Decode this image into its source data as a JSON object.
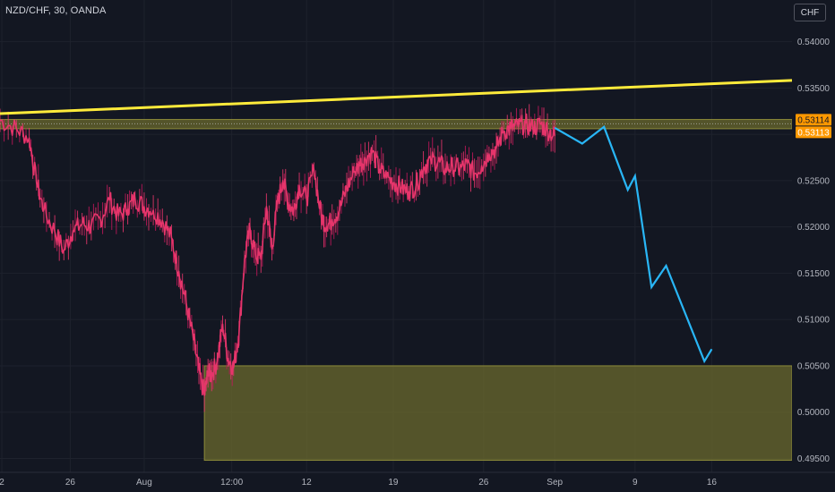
{
  "header": {
    "symbol": "NZD/CHF, 30, OANDA",
    "currency": "CHF"
  },
  "colors": {
    "background": "#131722",
    "candle_up": "#e6356b",
    "candle_down": "#c2185b",
    "trendline": "#ffeb3b",
    "projection": "#29b6f6",
    "zone_fill": "#6b6a2e",
    "zone_border": "#8c8a3a",
    "price_label": "#ff9800"
  },
  "chart_data": {
    "type": "line",
    "title": "NZD/CHF, 30, OANDA",
    "xlabel": "",
    "ylabel": "",
    "y_ticks": [
      "0.54000",
      "0.53500",
      "0.53000",
      "0.52500",
      "0.52000",
      "0.51500",
      "0.51000",
      "0.50500",
      "0.50000",
      "0.49500"
    ],
    "y_tick_values": [
      0.54,
      0.535,
      0.53,
      0.525,
      0.52,
      0.515,
      0.51,
      0.505,
      0.5,
      0.495
    ],
    "ylim": [
      0.4935,
      0.5445
    ],
    "x_ticks": [
      "2",
      "26",
      "Aug",
      "12:00",
      "12",
      "19",
      "26",
      "Sep",
      "9",
      "16"
    ],
    "x_tick_days": [
      -0.3,
      3.45,
      7.5,
      12.3,
      16.4,
      21.15,
      26.1,
      30.0,
      34.4,
      38.6
    ],
    "xlim": [
      -0.4,
      43.0
    ],
    "grid": true,
    "series": [
      {
        "x": [
          -0.4,
          0.5,
          1.2,
          1.6,
          2.0,
          2.6,
          3.1,
          3.6,
          4.1,
          4.6,
          5.1,
          5.6,
          6.1,
          6.6,
          7.0,
          7.5,
          8.0,
          8.5,
          9.0,
          9.4,
          9.8,
          10.2,
          10.5,
          10.8,
          11.0,
          11.2,
          11.5,
          11.8,
          12.1,
          12.4,
          12.7,
          13.0,
          13.3,
          13.6,
          13.9,
          14.2,
          14.5,
          14.8,
          15.1,
          15.4,
          15.7,
          16.0,
          16.4,
          16.8,
          17.2,
          17.5,
          17.8,
          18.2,
          18.6,
          19.0,
          19.3,
          19.6,
          20.0,
          20.4,
          20.8,
          21.2,
          21.6,
          22.0,
          22.4,
          22.8,
          23.2,
          23.6,
          24.0,
          24.4,
          24.8,
          25.2,
          25.6,
          26.0,
          26.4,
          26.8,
          27.2,
          27.6,
          28.0,
          28.4,
          28.8,
          29.2,
          29.6,
          30.0
        ],
        "values": [
          0.5315,
          0.5306,
          0.5296,
          0.5248,
          0.5218,
          0.5195,
          0.5175,
          0.5196,
          0.5203,
          0.5201,
          0.5208,
          0.5229,
          0.5212,
          0.5219,
          0.5231,
          0.5222,
          0.5218,
          0.5207,
          0.5188,
          0.5152,
          0.5118,
          0.5078,
          0.5045,
          0.5018,
          0.5042,
          0.504,
          0.5055,
          0.5095,
          0.5058,
          0.5048,
          0.5085,
          0.5165,
          0.5198,
          0.517,
          0.5165,
          0.5222,
          0.5176,
          0.5225,
          0.525,
          0.5226,
          0.5218,
          0.5245,
          0.523,
          0.5262,
          0.5212,
          0.52,
          0.5208,
          0.5218,
          0.5242,
          0.5259,
          0.5266,
          0.5275,
          0.528,
          0.5262,
          0.5253,
          0.5248,
          0.5242,
          0.5238,
          0.5245,
          0.5264,
          0.5273,
          0.527,
          0.5263,
          0.5266,
          0.5262,
          0.5268,
          0.5258,
          0.5266,
          0.5279,
          0.5285,
          0.5303,
          0.5307,
          0.5308,
          0.5312,
          0.5306,
          0.5311,
          0.5305,
          0.5298
        ]
      },
      {
        "x": [
          30.0,
          31.5,
          32.7,
          34.0,
          34.4,
          35.3,
          36.1,
          38.2,
          38.6
        ],
        "values": [
          0.5307,
          0.529,
          0.5308,
          0.524,
          0.5255,
          0.5135,
          0.5158,
          0.5055,
          0.5068
        ]
      }
    ],
    "trendline": {
      "x": [
        -0.4,
        43.0
      ],
      "values": [
        0.53223,
        0.53582
      ]
    },
    "resistance_zone": {
      "x": [
        -0.4,
        43.0
      ],
      "ylim": [
        0.5306,
        0.5316
      ]
    },
    "support_zone": {
      "x": [
        10.8,
        43.0
      ],
      "ylim": [
        0.4948,
        0.505
      ]
    },
    "current_prices": [
      "0.53114",
      "0.53113"
    ]
  }
}
